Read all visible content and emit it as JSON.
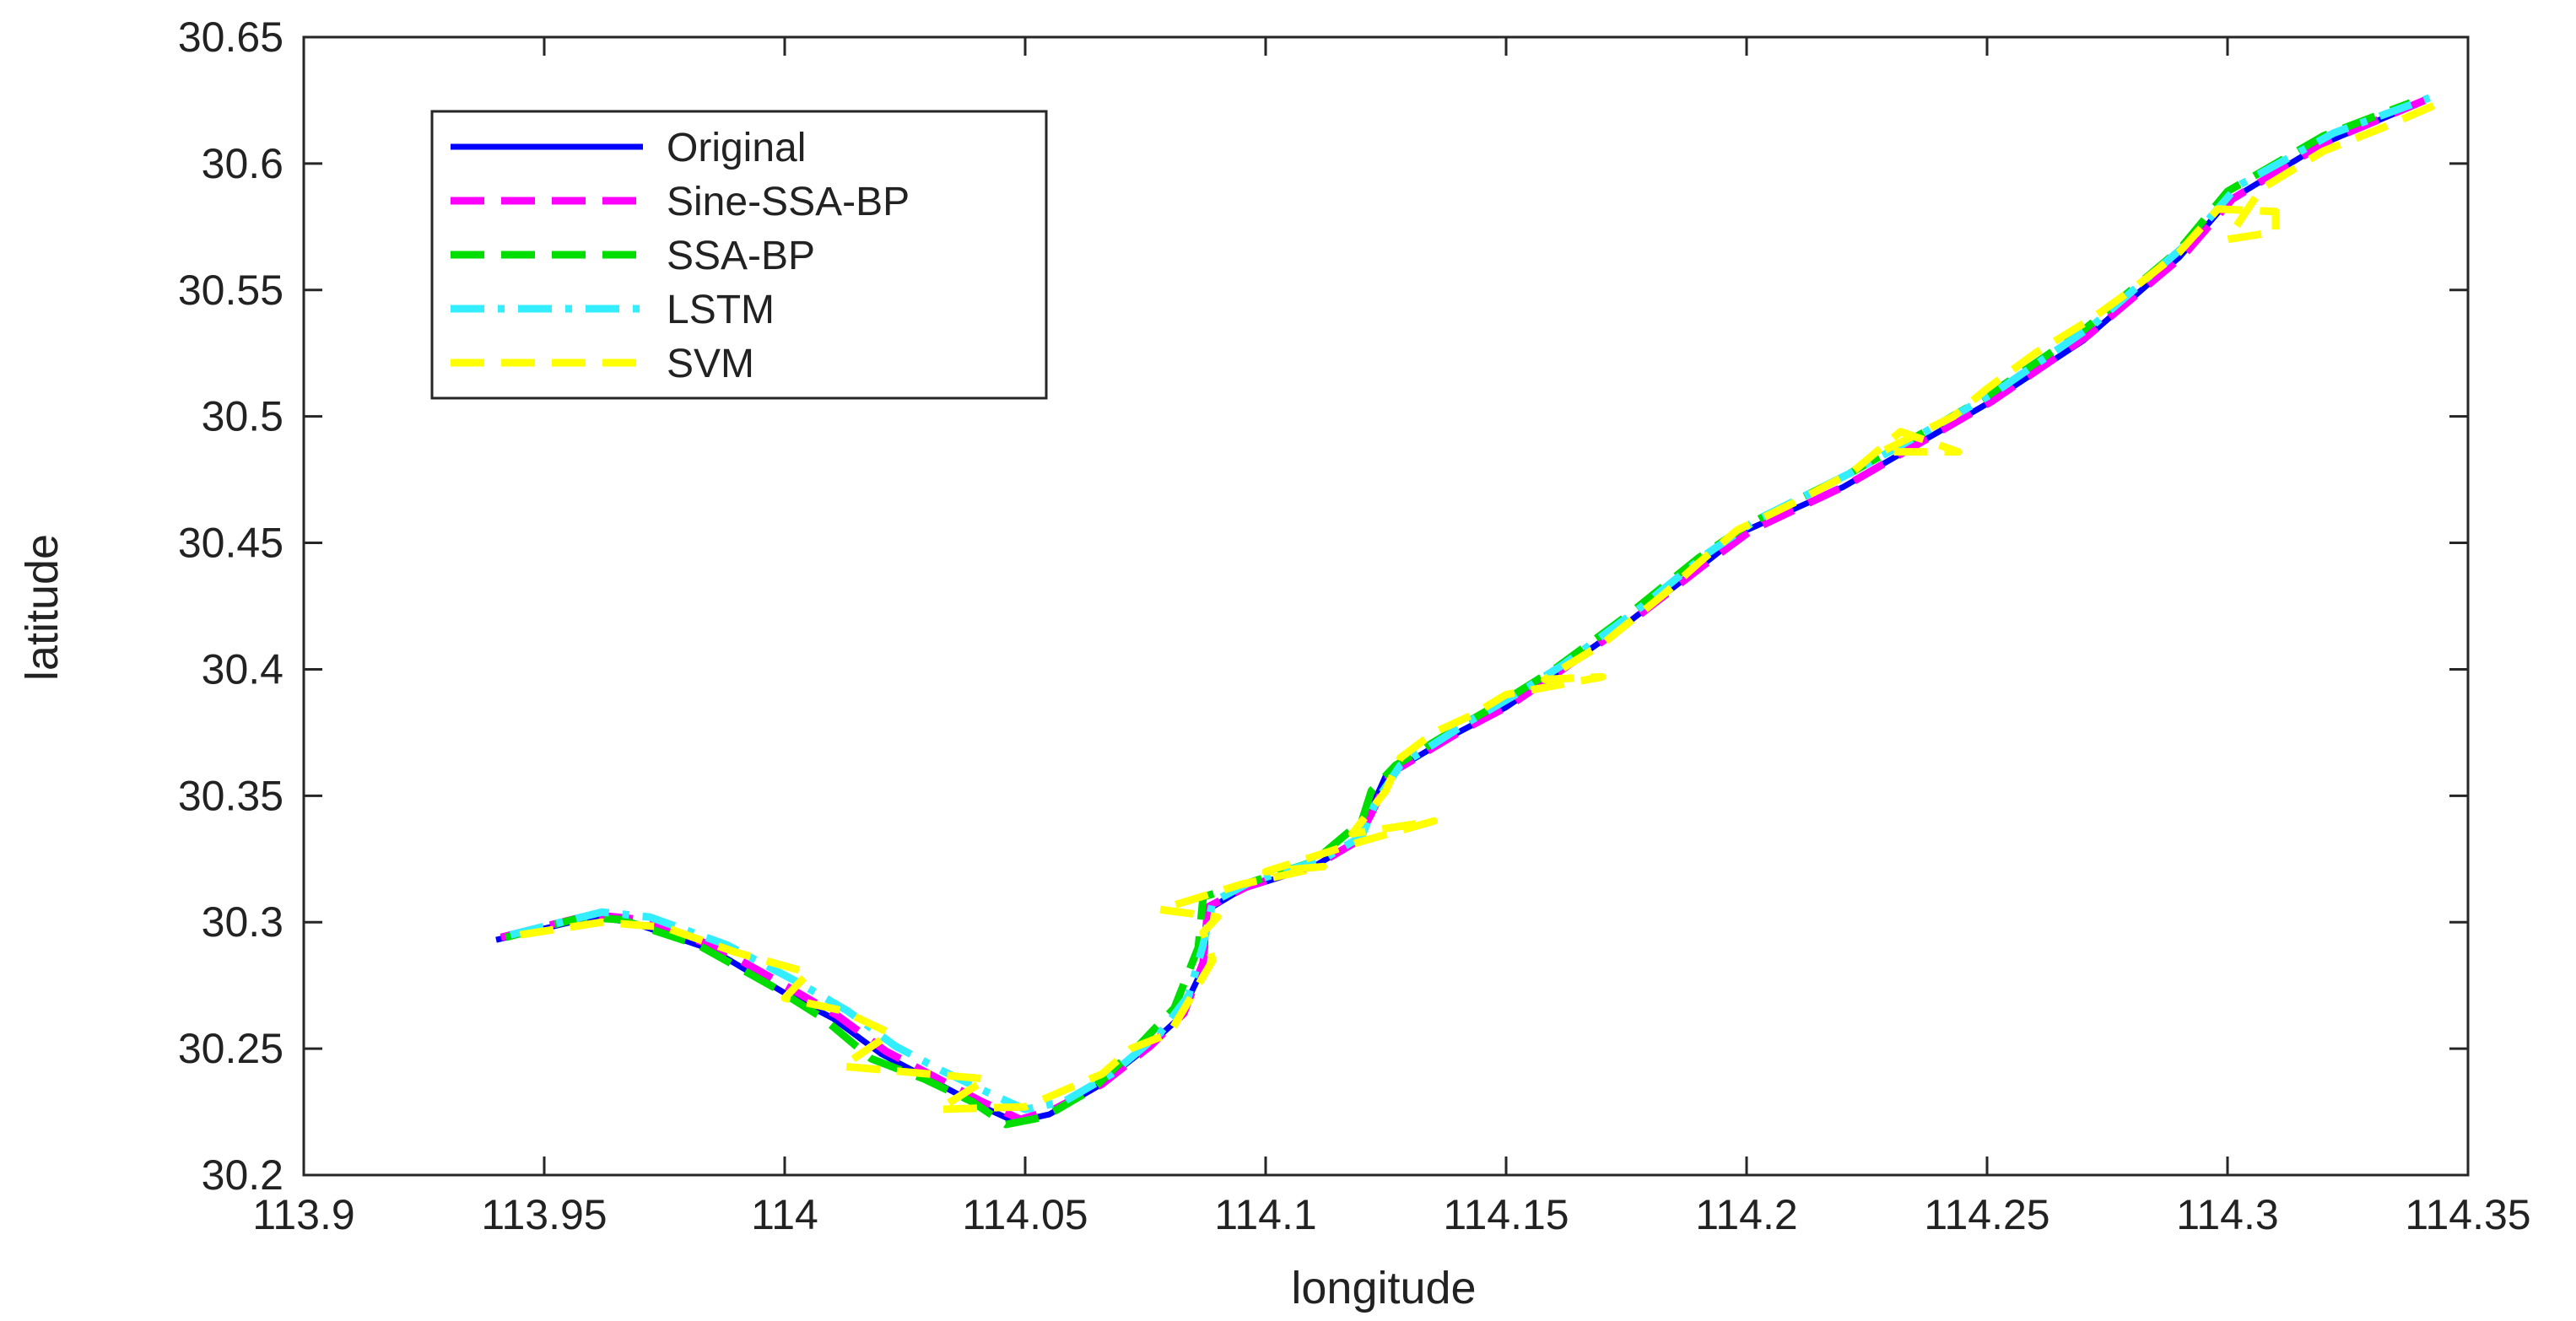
{
  "chart_data": {
    "type": "line",
    "title": "",
    "xlabel": "longitude",
    "ylabel": "latitude",
    "xlim": [
      113.9,
      114.35
    ],
    "ylim": [
      30.2,
      30.65
    ],
    "xticks": [
      113.9,
      113.95,
      114,
      114.05,
      114.1,
      114.15,
      114.2,
      114.25,
      114.3,
      114.35
    ],
    "xtick_labels": [
      "113.9",
      "113.95",
      "114",
      "114.05",
      "114.1",
      "114.15",
      "114.2",
      "114.25",
      "114.3",
      "114.35"
    ],
    "yticks": [
      30.2,
      30.25,
      30.3,
      30.35,
      30.4,
      30.45,
      30.5,
      30.55,
      30.6,
      30.65
    ],
    "ytick_labels": [
      "30.2",
      "30.25",
      "30.3",
      "30.35",
      "30.4",
      "30.45",
      "30.5",
      "30.55",
      "30.6",
      "30.65"
    ],
    "grid": false,
    "legend_position": "top-left",
    "series": [
      {
        "name": "Original",
        "color": "#0000ff",
        "dash": "solid",
        "points": [
          [
            113.94,
            30.293
          ],
          [
            113.96,
            30.302
          ],
          [
            113.968,
            30.3
          ],
          [
            113.985,
            30.289
          ],
          [
            114.0,
            30.272
          ],
          [
            114.01,
            30.262
          ],
          [
            114.02,
            30.248
          ],
          [
            114.03,
            30.238
          ],
          [
            114.04,
            30.228
          ],
          [
            114.048,
            30.221
          ],
          [
            114.055,
            30.224
          ],
          [
            114.065,
            30.235
          ],
          [
            114.075,
            30.25
          ],
          [
            114.082,
            30.262
          ],
          [
            114.087,
            30.282
          ],
          [
            114.088,
            30.305
          ],
          [
            114.095,
            30.313
          ],
          [
            114.11,
            30.322
          ],
          [
            114.118,
            30.331
          ],
          [
            114.121,
            30.341
          ],
          [
            114.125,
            30.358
          ],
          [
            114.14,
            30.375
          ],
          [
            114.15,
            30.385
          ],
          [
            114.16,
            30.398
          ],
          [
            114.175,
            30.418
          ],
          [
            114.19,
            30.44
          ],
          [
            114.2,
            30.455
          ],
          [
            114.22,
            30.472
          ],
          [
            114.24,
            30.494
          ],
          [
            114.25,
            30.505
          ],
          [
            114.27,
            30.53
          ],
          [
            114.29,
            30.563
          ],
          [
            114.3,
            30.585
          ],
          [
            114.32,
            30.608
          ],
          [
            114.34,
            30.624
          ]
        ]
      },
      {
        "name": "Sine-SSA-BP",
        "color": "#ff00ff",
        "dash": "dashed",
        "points": [
          [
            113.941,
            30.294
          ],
          [
            113.96,
            30.303
          ],
          [
            113.97,
            30.301
          ],
          [
            113.986,
            30.29
          ],
          [
            114.001,
            30.274
          ],
          [
            114.011,
            30.263
          ],
          [
            114.021,
            30.249
          ],
          [
            114.031,
            30.239
          ],
          [
            114.041,
            30.229
          ],
          [
            114.049,
            30.222
          ],
          [
            114.056,
            30.226
          ],
          [
            114.066,
            30.236
          ],
          [
            114.076,
            30.251
          ],
          [
            114.083,
            30.264
          ],
          [
            114.087,
            30.284
          ],
          [
            114.088,
            30.306
          ],
          [
            114.096,
            30.314
          ],
          [
            114.111,
            30.323
          ],
          [
            114.119,
            30.332
          ],
          [
            114.122,
            30.343
          ],
          [
            114.126,
            30.359
          ],
          [
            114.141,
            30.376
          ],
          [
            114.151,
            30.386
          ],
          [
            114.161,
            30.399
          ],
          [
            114.176,
            30.419
          ],
          [
            114.191,
            30.441
          ],
          [
            114.201,
            30.455
          ],
          [
            114.221,
            30.473
          ],
          [
            114.241,
            30.495
          ],
          [
            114.251,
            30.506
          ],
          [
            114.271,
            30.532
          ],
          [
            114.291,
            30.564
          ],
          [
            114.301,
            30.586
          ],
          [
            114.321,
            30.609
          ],
          [
            114.341,
            30.625
          ]
        ]
      },
      {
        "name": "SSA-BP",
        "color": "#00dd00",
        "dash": "dashed",
        "points": [
          [
            113.942,
            30.294
          ],
          [
            113.958,
            30.302
          ],
          [
            113.966,
            30.301
          ],
          [
            113.982,
            30.291
          ],
          [
            113.998,
            30.274
          ],
          [
            114.008,
            30.262
          ],
          [
            114.018,
            30.246
          ],
          [
            114.029,
            30.238
          ],
          [
            114.039,
            30.229
          ],
          [
            114.046,
            30.22
          ],
          [
            114.054,
            30.223
          ],
          [
            114.064,
            30.234
          ],
          [
            114.074,
            30.252
          ],
          [
            114.081,
            30.266
          ],
          [
            114.086,
            30.29
          ],
          [
            114.087,
            30.31
          ],
          [
            114.094,
            30.314
          ],
          [
            114.11,
            30.324
          ],
          [
            114.12,
            30.34
          ],
          [
            114.122,
            30.352
          ],
          [
            114.127,
            30.362
          ],
          [
            114.14,
            30.377
          ],
          [
            114.15,
            30.388
          ],
          [
            114.16,
            30.4
          ],
          [
            114.175,
            30.421
          ],
          [
            114.19,
            30.444
          ],
          [
            114.2,
            30.457
          ],
          [
            114.22,
            30.476
          ],
          [
            114.24,
            30.497
          ],
          [
            114.25,
            30.508
          ],
          [
            114.27,
            30.534
          ],
          [
            114.29,
            30.566
          ],
          [
            114.3,
            30.589
          ],
          [
            114.32,
            30.611
          ],
          [
            114.338,
            30.624
          ]
        ]
      },
      {
        "name": "LSTM",
        "color": "#33eeff",
        "dash": "dashdot",
        "points": [
          [
            113.943,
            30.295
          ],
          [
            113.962,
            30.304
          ],
          [
            113.972,
            30.302
          ],
          [
            113.988,
            30.291
          ],
          [
            114.003,
            30.276
          ],
          [
            114.013,
            30.265
          ],
          [
            114.023,
            30.251
          ],
          [
            114.033,
            30.241
          ],
          [
            114.043,
            30.232
          ],
          [
            114.05,
            30.226
          ],
          [
            114.058,
            30.229
          ],
          [
            114.068,
            30.24
          ],
          [
            114.078,
            30.256
          ],
          [
            114.084,
            30.271
          ],
          [
            114.087,
            30.291
          ],
          [
            114.089,
            30.308
          ],
          [
            114.097,
            30.316
          ],
          [
            114.112,
            30.325
          ],
          [
            114.12,
            30.334
          ],
          [
            114.123,
            30.348
          ],
          [
            114.128,
            30.362
          ],
          [
            114.142,
            30.379
          ],
          [
            114.152,
            30.39
          ],
          [
            114.162,
            30.402
          ],
          [
            114.177,
            30.423
          ],
          [
            114.192,
            30.446
          ],
          [
            114.202,
            30.459
          ],
          [
            114.222,
            30.478
          ],
          [
            114.242,
            30.499
          ],
          [
            114.252,
            30.51
          ],
          [
            114.272,
            30.536
          ],
          [
            114.292,
            30.569
          ],
          [
            114.302,
            30.591
          ],
          [
            114.322,
            30.612
          ],
          [
            114.342,
            30.626
          ]
        ]
      },
      {
        "name": "SVM",
        "color": "#ffff00",
        "dash": "dashed",
        "points": [
          [
            113.945,
            30.295
          ],
          [
            113.962,
            30.3
          ],
          [
            113.975,
            30.298
          ],
          [
            113.99,
            30.288
          ],
          [
            114.005,
            30.28
          ],
          [
            114.0,
            30.27
          ],
          [
            114.012,
            30.265
          ],
          [
            114.022,
            30.256
          ],
          [
            114.012,
            30.243
          ],
          [
            114.03,
            30.24
          ],
          [
            114.042,
            30.238
          ],
          [
            114.032,
            30.226
          ],
          [
            114.05,
            30.227
          ],
          [
            114.055,
            30.231
          ],
          [
            114.066,
            30.24
          ],
          [
            114.072,
            30.25
          ],
          [
            114.08,
            30.256
          ],
          [
            114.085,
            30.272
          ],
          [
            114.089,
            30.285
          ],
          [
            114.087,
            30.296
          ],
          [
            114.09,
            30.302
          ],
          [
            114.078,
            30.305
          ],
          [
            114.095,
            30.315
          ],
          [
            114.112,
            30.322
          ],
          [
            114.1,
            30.32
          ],
          [
            114.12,
            30.332
          ],
          [
            114.135,
            30.34
          ],
          [
            114.118,
            30.335
          ],
          [
            114.125,
            30.352
          ],
          [
            114.128,
            30.365
          ],
          [
            114.135,
            30.375
          ],
          [
            114.143,
            30.382
          ],
          [
            114.15,
            30.39
          ],
          [
            114.17,
            30.397
          ],
          [
            114.158,
            30.396
          ],
          [
            114.17,
            30.41
          ],
          [
            114.183,
            30.43
          ],
          [
            114.19,
            30.442
          ],
          [
            114.198,
            30.455
          ],
          [
            114.21,
            30.466
          ],
          [
            114.222,
            30.478
          ],
          [
            114.232,
            30.494
          ],
          [
            114.244,
            30.486
          ],
          [
            114.228,
            30.486
          ],
          [
            114.243,
            30.5
          ],
          [
            114.25,
            30.511
          ],
          [
            114.26,
            30.525
          ],
          [
            114.272,
            30.539
          ],
          [
            114.28,
            30.55
          ],
          [
            114.29,
            30.565
          ],
          [
            114.298,
            30.582
          ],
          [
            114.31,
            30.581
          ],
          [
            114.31,
            30.573
          ],
          [
            114.3,
            30.57
          ],
          [
            114.307,
            30.59
          ],
          [
            114.32,
            30.605
          ],
          [
            114.332,
            30.614
          ],
          [
            114.343,
            30.623
          ]
        ]
      }
    ]
  }
}
